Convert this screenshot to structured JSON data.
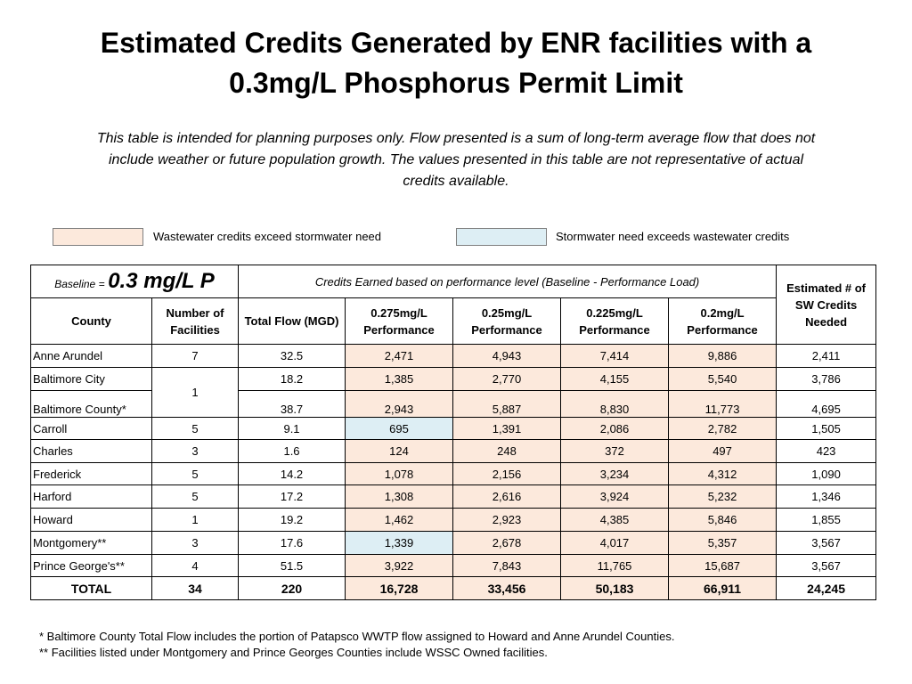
{
  "title_line1": "Estimated Credits Generated by ENR facilities with a",
  "title_line2": "0.3mg/L Phosphorus Permit Limit",
  "subtitle_line1": "This table is intended for planning purposes only. Flow presented is a sum of long-term average flow that does not",
  "subtitle_line2": "include weather or future population growth. The values presented in this table are not representative of actual",
  "subtitle_line3": "credits available.",
  "legend": {
    "wastewater": {
      "label": "Wastewater credits exceed stormwater need",
      "color": "#fce9dc"
    },
    "stormwater": {
      "label": "Stormwater need exceeds wastewater credits",
      "color": "#ddeef4"
    }
  },
  "table": {
    "baseline_label": "Baseline =",
    "baseline_value": "0.3 mg/L P",
    "credits_header": "Credits Earned based on performance level (Baseline - Performance Load)",
    "sw_header": "Estimated # of SW Credits Needed",
    "county_header": "County",
    "facilities_header": "Number of Facilities",
    "flow_header": "Total Flow (MGD)",
    "perf_headers": [
      "0.275mg/L Performance",
      "0.25mg/L Performance",
      "0.225mg/L Performance",
      "0.2mg/L Performance"
    ],
    "rows": [
      {
        "county": "Anne Arundel",
        "facilities": "7",
        "flow": "32.5",
        "p1": "2,471",
        "p2": "4,943",
        "p3": "7,414",
        "p4": "9,886",
        "sw": "2,411"
      },
      {
        "county": "Baltimore City",
        "facilities": "1",
        "flow": "18.2",
        "p1": "1,385",
        "p2": "2,770",
        "p3": "4,155",
        "p4": "5,540",
        "sw": "3,786"
      },
      {
        "county": "Baltimore County*",
        "flow": "38.7",
        "p1": "2,943",
        "p2": "5,887",
        "p3": "8,830",
        "p4": "11,773",
        "sw": "4,695"
      },
      {
        "county": "Carroll",
        "facilities": "5",
        "flow": "9.1",
        "p1": "695",
        "p2": "1,391",
        "p3": "2,086",
        "p4": "2,782",
        "sw": "1,505"
      },
      {
        "county": "Charles",
        "facilities": "3",
        "flow": "1.6",
        "p1": "124",
        "p2": "248",
        "p3": "372",
        "p4": "497",
        "sw": "423"
      },
      {
        "county": "Frederick",
        "facilities": "5",
        "flow": "14.2",
        "p1": "1,078",
        "p2": "2,156",
        "p3": "3,234",
        "p4": "4,312",
        "sw": "1,090"
      },
      {
        "county": "Harford",
        "facilities": "5",
        "flow": "17.2",
        "p1": "1,308",
        "p2": "2,616",
        "p3": "3,924",
        "p4": "5,232",
        "sw": "1,346"
      },
      {
        "county": "Howard",
        "facilities": "1",
        "flow": "19.2",
        "p1": "1,462",
        "p2": "2,923",
        "p3": "4,385",
        "p4": "5,846",
        "sw": "1,855"
      },
      {
        "county": "Montgomery**",
        "facilities": "3",
        "flow": "17.6",
        "p1": "1,339",
        "p2": "2,678",
        "p3": "4,017",
        "p4": "5,357",
        "sw": "3,567"
      },
      {
        "county": "Prince George's**",
        "facilities": "4",
        "flow": "51.5",
        "p1": "3,922",
        "p2": "7,843",
        "p3": "11,765",
        "p4": "15,687",
        "sw": "3,567"
      }
    ],
    "total": {
      "county": "TOTAL",
      "facilities": "34",
      "flow": "220",
      "p1": "16,728",
      "p2": "33,456",
      "p3": "50,183",
      "p4": "66,911",
      "sw": "24,245"
    }
  },
  "footnote1": "* Baltimore County Total Flow includes the portion of Patapsco WWTP flow assigned to Howard and Anne Arundel Counties.",
  "footnote2": "** Facilities listed under Montgomery and Prince Georges Counties include WSSC Owned facilities."
}
